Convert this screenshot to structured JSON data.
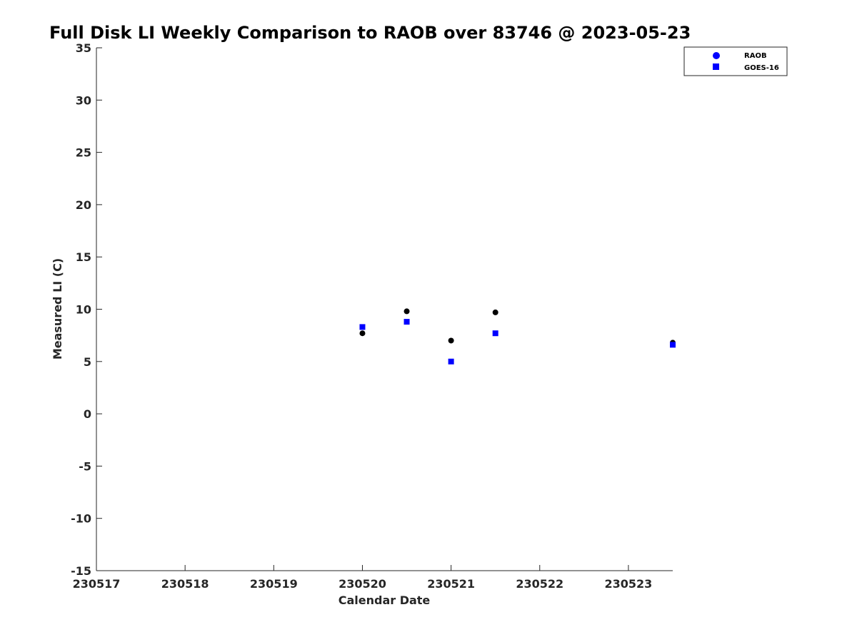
{
  "chart_data": {
    "type": "scatter",
    "title": "Full Disk LI Weekly Comparison to RAOB over 83746 @ 2023-05-23",
    "xlabel": "Calendar Date",
    "ylabel": "Measured LI (C)",
    "xlim": [
      230517,
      230523.5
    ],
    "ylim": [
      -15,
      35
    ],
    "xticks": [
      230517,
      230518,
      230519,
      230520,
      230521,
      230522,
      230523
    ],
    "xtick_labels": [
      "230517",
      "230518",
      "230519",
      "230520",
      "230521",
      "230522",
      "230523"
    ],
    "yticks": [
      -15,
      -10,
      -5,
      0,
      5,
      10,
      15,
      20,
      25,
      30,
      35
    ],
    "ytick_labels": [
      "-15",
      "-10",
      "-5",
      "0",
      "5",
      "10",
      "15",
      "20",
      "25",
      "30",
      "35"
    ],
    "grid": false,
    "legend_position": "top-right",
    "series": [
      {
        "name": "RAOB",
        "marker": "circle",
        "legend_color": "#0000ff",
        "color": "#000000",
        "points": [
          {
            "x": 230520.0,
            "y": 7.7
          },
          {
            "x": 230520.5,
            "y": 9.8
          },
          {
            "x": 230521.0,
            "y": 7.0
          },
          {
            "x": 230521.5,
            "y": 9.7
          },
          {
            "x": 230523.5,
            "y": 6.8
          }
        ]
      },
      {
        "name": "GOES-16",
        "marker": "square",
        "legend_color": "#0000ff",
        "color": "#0000ff",
        "points": [
          {
            "x": 230520.0,
            "y": 8.3
          },
          {
            "x": 230520.5,
            "y": 8.8
          },
          {
            "x": 230521.0,
            "y": 5.0
          },
          {
            "x": 230521.5,
            "y": 7.7
          },
          {
            "x": 230523.5,
            "y": 6.6
          }
        ]
      }
    ]
  }
}
